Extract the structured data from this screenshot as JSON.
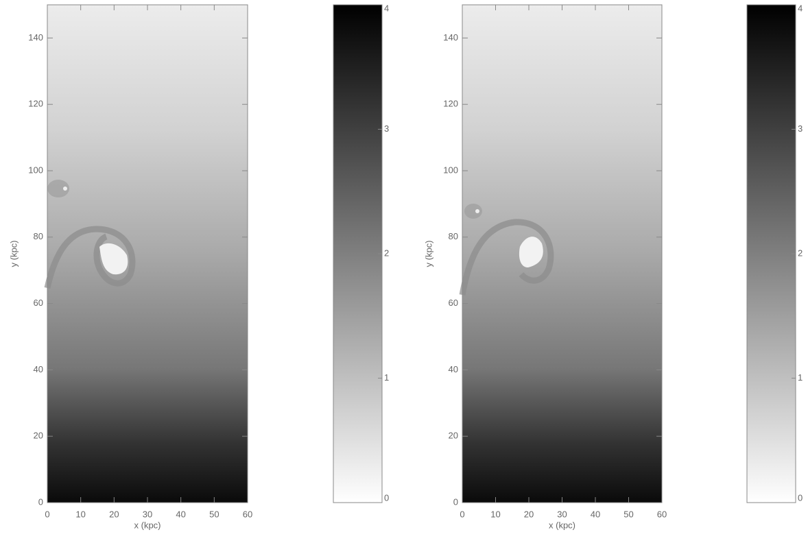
{
  "chart_data": [
    {
      "type": "image",
      "xlabel": "x (kpc)",
      "ylabel": "y (kpc)",
      "xlim": [
        0,
        60
      ],
      "ylim": [
        0,
        150
      ],
      "xticks": [
        0,
        10,
        20,
        30,
        40,
        50,
        60
      ],
      "yticks": [
        0,
        20,
        40,
        60,
        80,
        100,
        120,
        140
      ],
      "colorbar": {
        "lim": [
          0,
          4
        ],
        "ticks": [
          0,
          1,
          2,
          3,
          4
        ]
      }
    },
    {
      "type": "image",
      "xlabel": "x (kpc)",
      "ylabel": "y (kpc)",
      "xlim": [
        0,
        60
      ],
      "ylim": [
        0,
        150
      ],
      "xticks": [
        0,
        10,
        20,
        30,
        40,
        50,
        60
      ],
      "yticks": [
        0,
        20,
        40,
        60,
        80,
        100,
        120,
        140
      ],
      "colorbar": {
        "lim": [
          0,
          4
        ],
        "ticks": [
          0,
          1,
          2,
          3,
          4
        ]
      }
    }
  ]
}
